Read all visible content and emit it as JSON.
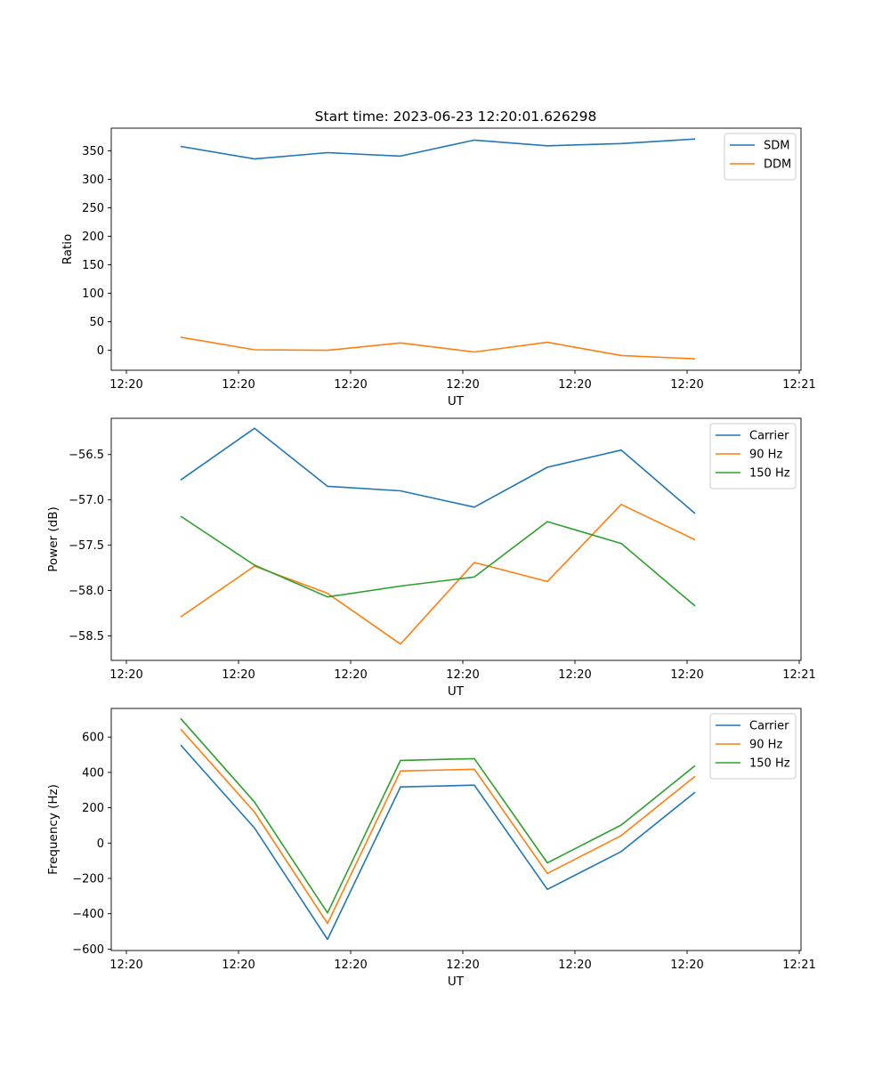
{
  "title": "Start time: 2023-06-23 12:20:01.626298",
  "chart_data": [
    {
      "type": "line",
      "title": "Start time: 2023-06-23 12:20:01.626298",
      "xlabel": "UT",
      "ylabel": "Ratio",
      "x_tick_labels": [
        "12:20",
        "12:20",
        "12:20",
        "12:20",
        "12:20",
        "12:20",
        "12:21"
      ],
      "y_ticks": [
        0,
        50,
        100,
        150,
        200,
        250,
        300,
        350
      ],
      "ylim": [
        -35,
        390
      ],
      "grid": false,
      "legend_position": "top-right",
      "series": [
        {
          "name": "SDM",
          "color": "#1f77b4",
          "values": [
            358,
            336,
            347,
            341,
            369,
            359,
            363,
            371
          ]
        },
        {
          "name": "DDM",
          "color": "#ff7f0e",
          "values": [
            23,
            1,
            0,
            13,
            -3,
            14,
            -9,
            -15
          ]
        }
      ]
    },
    {
      "type": "line",
      "xlabel": "UT",
      "ylabel": "Power (dB)",
      "x_tick_labels": [
        "12:20",
        "12:20",
        "12:20",
        "12:20",
        "12:20",
        "12:20",
        "12:21"
      ],
      "y_ticks": [
        -58.5,
        -58.0,
        -57.5,
        -57.0,
        -56.5
      ],
      "y_tick_labels": [
        "−58.5",
        "−58.0",
        "−57.5",
        "−57.0",
        "−56.5"
      ],
      "ylim": [
        -58.77,
        -56.1
      ],
      "grid": false,
      "legend_position": "top-right",
      "series": [
        {
          "name": "Carrier",
          "color": "#1f77b4",
          "values": [
            -56.78,
            -56.21,
            -56.85,
            -56.9,
            -57.08,
            -56.64,
            -56.45,
            -57.15
          ]
        },
        {
          "name": "90 Hz",
          "color": "#ff7f0e",
          "values": [
            -58.29,
            -57.73,
            -58.03,
            -58.59,
            -57.69,
            -57.9,
            -57.05,
            -57.44
          ]
        },
        {
          "name": "150 Hz",
          "color": "#2ca02c",
          "values": [
            -57.18,
            -57.72,
            -58.07,
            -57.95,
            -57.85,
            -57.24,
            -57.48,
            -58.17
          ]
        }
      ]
    },
    {
      "type": "line",
      "xlabel": "UT",
      "ylabel": "Frequency (Hz)",
      "x_tick_labels": [
        "12:20",
        "12:20",
        "12:20",
        "12:20",
        "12:20",
        "12:20",
        "12:21"
      ],
      "y_ticks": [
        -600,
        -400,
        -200,
        0,
        200,
        400,
        600
      ],
      "y_tick_labels": [
        "−600",
        "−400",
        "−200",
        "0",
        "200",
        "400",
        "600"
      ],
      "ylim": [
        -608,
        762
      ],
      "grid": false,
      "legend_position": "top-right",
      "series": [
        {
          "name": "Carrier",
          "color": "#1f77b4",
          "values": [
            555,
            85,
            -545,
            318,
            328,
            -262,
            -48,
            288
          ]
        },
        {
          "name": "90 Hz",
          "color": "#ff7f0e",
          "values": [
            645,
            175,
            -455,
            408,
            418,
            -172,
            42,
            378
          ]
        },
        {
          "name": "150 Hz",
          "color": "#2ca02c",
          "values": [
            705,
            232,
            -395,
            468,
            478,
            -112,
            102,
            438
          ]
        }
      ]
    }
  ]
}
